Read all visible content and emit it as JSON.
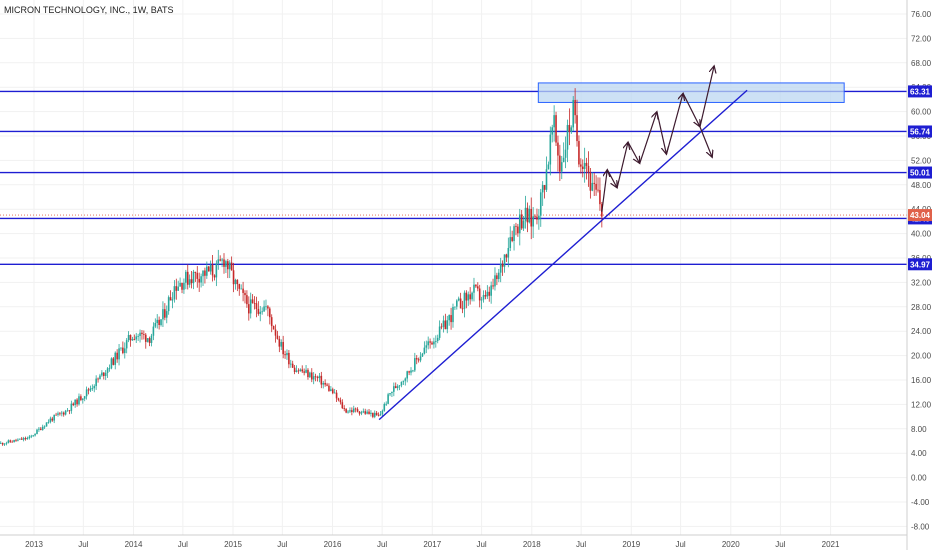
{
  "header": {
    "title": "MICRON TECHNOLOGY, INC., 1W, BATS"
  },
  "colors": {
    "level": "#1e1ed2",
    "up": "#26a69a",
    "down": "#c62828",
    "price_tag": "#e0614a",
    "zone_fill": "#bcd7f2",
    "zone_border": "#2962ff",
    "arrow": "#3d1a2e"
  },
  "chart_data": {
    "type": "candlestick",
    "title": "MICRON TECHNOLOGY, INC., 1W, BATS",
    "ylim": [
      -8,
      78
    ],
    "y_ticks": [
      "76.00",
      "72.00",
      "68.00",
      "64.00",
      "60.00",
      "56.00",
      "52.00",
      "48.00",
      "44.00",
      "40.00",
      "36.00",
      "32.00",
      "28.00",
      "24.00",
      "20.00",
      "16.00",
      "12.00",
      "8.00",
      "4.00",
      "0.00",
      "-4.00",
      "-8.00"
    ],
    "x_ticks": [
      "2013",
      "Jul",
      "2014",
      "Jul",
      "2015",
      "Jul",
      "2016",
      "Jul",
      "2017",
      "Jul",
      "2018",
      "Jul",
      "2019",
      "Jul",
      "2020",
      "Jul",
      "2021"
    ],
    "levels": [
      {
        "label": "63.31",
        "value": 63.31
      },
      {
        "label": "56.74",
        "value": 56.74
      },
      {
        "label": "50.01",
        "value": 50.01
      },
      {
        "label": "42.49",
        "value": 42.49
      },
      {
        "label": "34.97",
        "value": 34.97
      }
    ],
    "last_price": {
      "label": "43.04",
      "value": 43.04
    },
    "resistance_zone": {
      "from": "2018-01-25",
      "to": "2021-02-20",
      "low": 61.5,
      "high": 64.7
    },
    "trendline": {
      "from": {
        "date": "2016-06-20",
        "price": 9.5
      },
      "to": {
        "date": "2020-03-01",
        "price": 63.5
      }
    },
    "projection_path": [
      [
        "2018-09-15",
        43.6
      ],
      [
        "2018-10-05",
        50.5
      ],
      [
        "2018-11-10",
        47.5
      ],
      [
        "2018-12-20",
        55.0
      ],
      [
        "2019-02-01",
        51.5
      ],
      [
        "2019-04-05",
        60.0
      ],
      [
        "2019-05-10",
        53.0
      ],
      [
        "2019-07-10",
        63.0
      ],
      [
        "2019-09-10",
        57.5
      ],
      [
        "2019-10-25",
        52.5
      ]
    ],
    "projection_extension": {
      "from": [
        "2019-09-10",
        57.5
      ],
      "to": [
        "2019-11-01",
        67.5
      ]
    },
    "price_path": [
      [
        "2012-09-01",
        5.6
      ],
      [
        "2012-12-15",
        6.5
      ],
      [
        "2013-03-01",
        9.5
      ],
      [
        "2013-05-01",
        11.0
      ],
      [
        "2013-07-01",
        13.5
      ],
      [
        "2013-09-01",
        16.5
      ],
      [
        "2013-11-01",
        20.0
      ],
      [
        "2014-01-01",
        23.5
      ],
      [
        "2014-03-01",
        23.0
      ],
      [
        "2014-04-15",
        26.0
      ],
      [
        "2014-06-01",
        31.5
      ],
      [
        "2014-08-01",
        33.0
      ],
      [
        "2014-09-15",
        33.5
      ],
      [
        "2014-11-01",
        34.0
      ],
      [
        "2014-12-01",
        36.0
      ],
      [
        "2015-01-15",
        31.0
      ],
      [
        "2015-03-01",
        28.0
      ],
      [
        "2015-05-01",
        28.0
      ],
      [
        "2015-07-01",
        21.0
      ],
      [
        "2015-08-15",
        18.0
      ],
      [
        "2015-10-01",
        17.0
      ],
      [
        "2015-11-15",
        16.0
      ],
      [
        "2016-01-01",
        14.0
      ],
      [
        "2016-02-15",
        11.0
      ],
      [
        "2016-04-01",
        11.0
      ],
      [
        "2016-05-15",
        10.5
      ],
      [
        "2016-06-20",
        10.0
      ],
      [
        "2016-08-01",
        14.0
      ],
      [
        "2016-10-01",
        17.0
      ],
      [
        "2016-12-01",
        21.0
      ],
      [
        "2017-02-01",
        24.0
      ],
      [
        "2017-04-01",
        28.0
      ],
      [
        "2017-06-01",
        30.5
      ],
      [
        "2017-07-15",
        29.0
      ],
      [
        "2017-09-01",
        33.0
      ],
      [
        "2017-10-15",
        40.0
      ],
      [
        "2017-12-01",
        43.0
      ],
      [
        "2018-01-01",
        42.0
      ],
      [
        "2018-02-01",
        45.0
      ],
      [
        "2018-03-01",
        52.0
      ],
      [
        "2018-03-20",
        58.0
      ],
      [
        "2018-04-15",
        51.0
      ],
      [
        "2018-05-10",
        56.0
      ],
      [
        "2018-06-01",
        60.0
      ],
      [
        "2018-06-25",
        53.0
      ],
      [
        "2018-07-20",
        52.0
      ],
      [
        "2018-08-10",
        47.0
      ],
      [
        "2018-09-01",
        46.0
      ],
      [
        "2018-09-20",
        43.0
      ]
    ]
  }
}
